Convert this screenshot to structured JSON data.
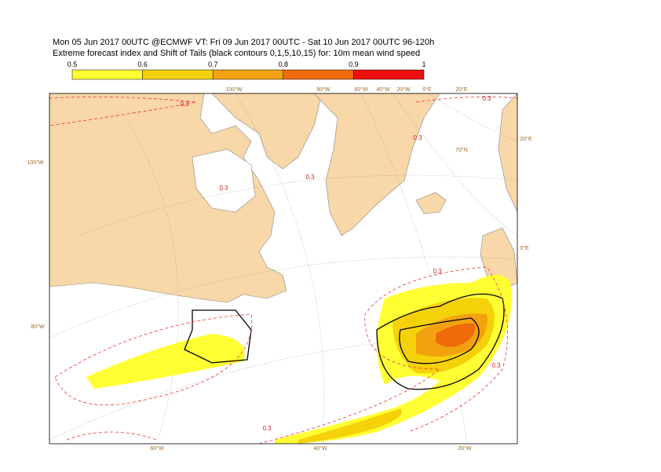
{
  "header": {
    "line1": "Mon 05 Jun 2017 00UTC @ECMWF VT: Fri 09 Jun 2017 00UTC - Sat 10 Jun 2017 00UTC  96-120h",
    "line2": "Extreme forecast index and Shift of Tails (black contours 0,1,5,10,15) for: 10m mean wind speed"
  },
  "colorbar": {
    "ticks": [
      0.5,
      0.6,
      0.7,
      0.8,
      0.9,
      1
    ],
    "colors": [
      "#ffff33",
      "#f5d10a",
      "#f3a20f",
      "#ef6a0a",
      "#ee1010"
    ]
  },
  "map": {
    "labels": [
      "100°W",
      "80°W",
      "60°W",
      "40°W",
      "20°W",
      "0°E",
      "20°E",
      "100°W",
      "80°W",
      "60°W",
      "40°W",
      "20°W",
      "20°E",
      "0°E",
      "70°N",
      "0.3",
      "0.3",
      "0.3",
      "0.3",
      "0.3",
      "0.3",
      "0.3",
      "0.3"
    ]
  }
}
